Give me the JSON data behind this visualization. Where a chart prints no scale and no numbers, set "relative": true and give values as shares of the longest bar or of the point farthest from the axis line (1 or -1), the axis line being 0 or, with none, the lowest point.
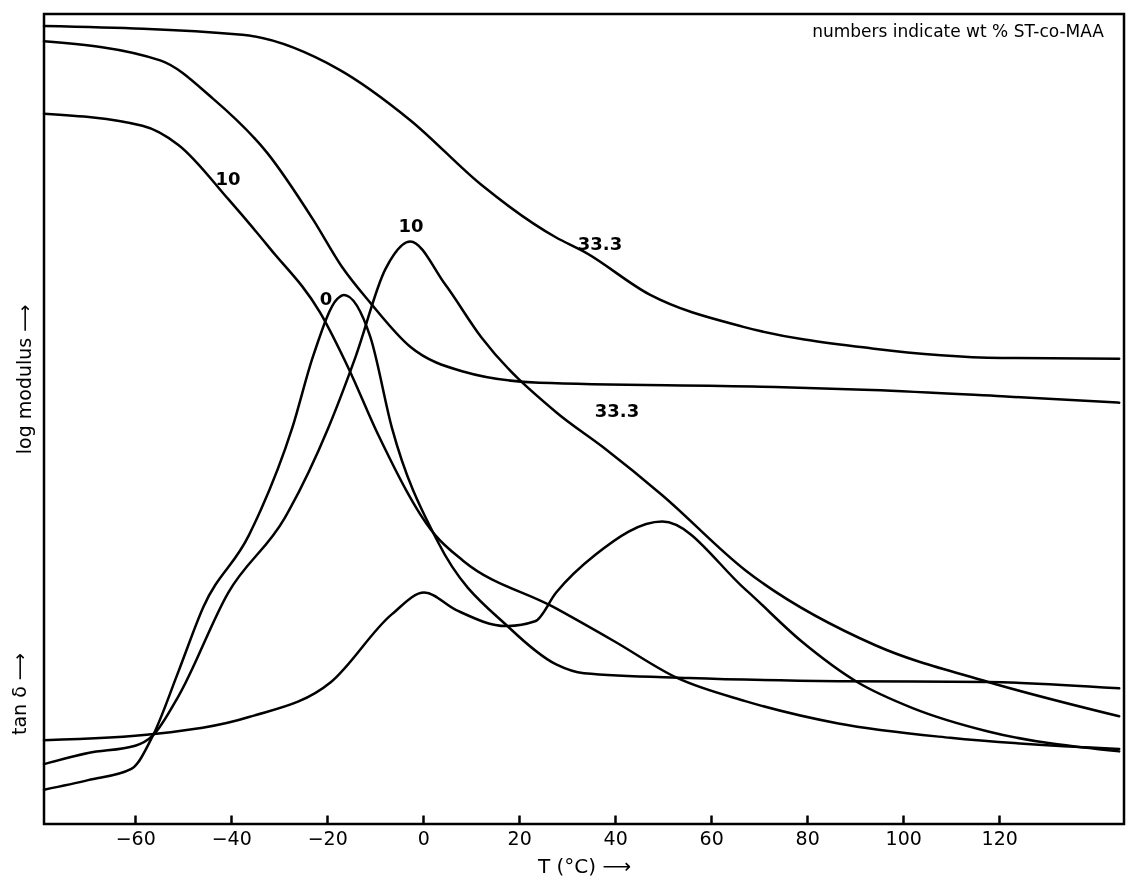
{
  "chart_data": {
    "type": "line",
    "relative": true,
    "xlabel": "T (°C) ⟶",
    "ylabel": "log modulus ⟶",
    "xlim": [
      -79,
      146
    ],
    "xticks": [
      -60,
      -40,
      -20,
      0,
      20,
      40,
      60,
      80,
      100,
      120
    ],
    "grid": false,
    "marker": "none",
    "line_style": "solid",
    "annotations": [
      "numbers indicate  wt %  ST-co-MAA",
      "tan δ ⟶",
      "10",
      "10",
      "0",
      "33.3",
      "33.3"
    ],
    "series": [
      {
        "color": "#000000",
        "x": [
          -79,
          -37.7,
          -17.7,
          -2.7,
          12.1,
          27.7,
          33.3,
          47.3,
          66.7,
          93.5,
          120.6,
          145
        ],
        "values": [
          1.0,
          0.989,
          0.946,
          0.882,
          0.801,
          0.735,
          0.718,
          0.663,
          0.623,
          0.596,
          0.584,
          0.583
        ]
      },
      {
        "color": "#000000",
        "x": [
          -79,
          -54.8,
          -43.8,
          -32.5,
          -22.9,
          -16.9,
          -11.0,
          -2.7,
          8.3,
          24.2,
          70.4,
          93.5,
          120.6,
          145
        ],
        "values": [
          0.981,
          0.957,
          0.909,
          0.841,
          0.757,
          0.698,
          0.653,
          0.598,
          0.567,
          0.553,
          0.548,
          0.544,
          0.536,
          0.528
        ]
      },
      {
        "color": "#000000",
        "x": [
          -79,
          -58.5,
          -51.0,
          -40.6,
          -31.9,
          -21.5,
          -15.4,
          -9.4,
          2.5,
          8.3,
          27.1,
          39.8,
          52.9,
          67.1,
          86.5,
          109.8,
          145
        ],
        "values": [
          0.89,
          0.875,
          0.851,
          0.783,
          0.721,
          0.641,
          0.569,
          0.488,
          0.362,
          0.33,
          0.272,
          0.229,
          0.183,
          0.154,
          0.126,
          0.108,
          0.094
        ]
      },
      {
        "color": "#000000",
        "x": [
          -79,
          -69.8,
          -60.8,
          -56.3,
          -51.0,
          -45.8,
          -36.3,
          -27.3,
          -22.9,
          -17.9,
          -16.5,
          -11.0,
          -6.5,
          3.1,
          18.1,
          27.7,
          33.5,
          55.4,
          86.5,
          117.7,
          145
        ],
        "values": [
          0.043,
          0.055,
          0.069,
          0.111,
          0.191,
          0.272,
          0.362,
          0.496,
          0.587,
          0.658,
          0.663,
          0.61,
          0.496,
          0.353,
          0.245,
          0.2,
          0.189,
          0.183,
          0.179,
          0.178,
          0.17
        ]
      },
      {
        "color": "#000000",
        "x": [
          -79,
          -69.8,
          -60,
          -56.3,
          -51,
          -40.6,
          -28.8,
          -19.8,
          -14,
          -7.9,
          -2.7,
          4.6,
          12.1,
          27.7,
          37.5,
          49.8,
          67.1,
          94.2,
          117.7,
          145
        ],
        "values": [
          0.075,
          0.089,
          0.098,
          0.111,
          0.16,
          0.29,
          0.384,
          0.496,
          0.587,
          0.695,
          0.73,
          0.676,
          0.61,
          0.516,
          0.472,
          0.412,
          0.318,
          0.224,
          0.178,
          0.135
        ]
      },
      {
        "color": "#000000",
        "x": [
          -79,
          -55.6,
          -36.3,
          -19.2,
          -6.5,
          0.2,
          6.9,
          17.3,
          23.3,
          27.7,
          35.8,
          49.8,
          67.1,
          78.8,
          90.4,
          102.1,
          117.7,
          145
        ],
        "values": [
          0.105,
          0.113,
          0.134,
          0.178,
          0.263,
          0.29,
          0.268,
          0.248,
          0.254,
          0.29,
          0.337,
          0.379,
          0.294,
          0.229,
          0.178,
          0.145,
          0.116,
          0.091
        ]
      }
    ]
  }
}
